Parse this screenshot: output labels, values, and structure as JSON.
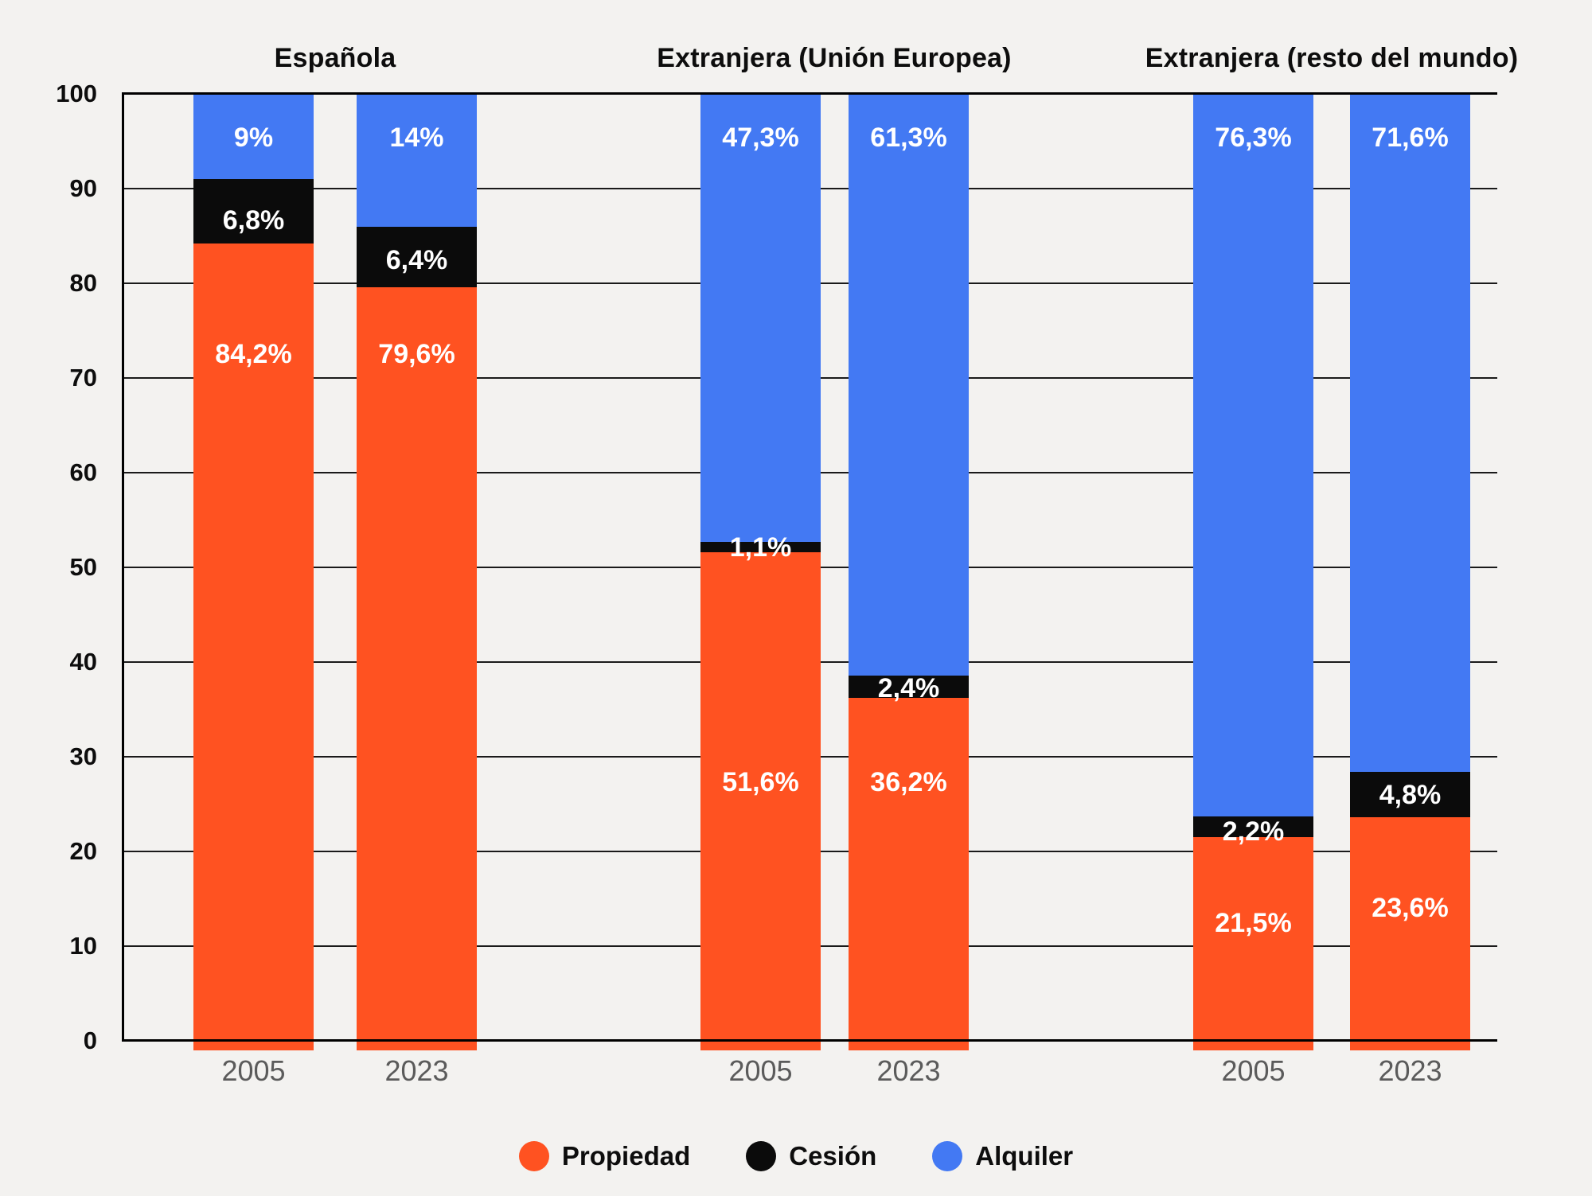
{
  "chart_data": {
    "type": "bar",
    "stacked": true,
    "unit": "%",
    "grid": true,
    "y_axis": {
      "min": 0,
      "max": 100,
      "step": 10,
      "tick_labels": [
        "0",
        "10",
        "20",
        "30",
        "40",
        "50",
        "60",
        "70",
        "80",
        "90",
        "100"
      ]
    },
    "series": [
      {
        "name": "Propiedad",
        "color": "#FF5221"
      },
      {
        "name": "Cesión",
        "color": "#0B0B0B"
      },
      {
        "name": "Alquiler",
        "color": "#4379F3"
      }
    ],
    "legend": {
      "position": "bottom",
      "items": [
        "Propiedad",
        "Cesión",
        "Alquiler"
      ]
    },
    "groups": [
      {
        "label": "Española",
        "bars": [
          {
            "category": "2005",
            "segments": [
              {
                "series": "Propiedad",
                "value": 84.2,
                "label": "84,2%",
                "label_at": 72.5
              },
              {
                "series": "Cesión",
                "value": 6.8,
                "label": "6,8%",
                "label_at": 86.6
              },
              {
                "series": "Alquiler",
                "value": 9.0,
                "label": "9%",
                "label_at": 95.4
              }
            ]
          },
          {
            "category": "2023",
            "segments": [
              {
                "series": "Propiedad",
                "value": 79.6,
                "label": "79,6%",
                "label_at": 72.5
              },
              {
                "series": "Cesión",
                "value": 6.4,
                "label": "6,4%",
                "label_at": 82.4
              },
              {
                "series": "Alquiler",
                "value": 14.0,
                "label": "14%",
                "label_at": 95.4
              }
            ]
          }
        ]
      },
      {
        "label": "Extranjera (Unión Europea)",
        "bars": [
          {
            "category": "2005",
            "segments": [
              {
                "series": "Propiedad",
                "value": 51.6,
                "label": "51,6%",
                "label_at": 27.3
              },
              {
                "series": "Cesión",
                "value": 1.1,
                "label": "1,1%",
                "label_at": 52.1
              },
              {
                "series": "Alquiler",
                "value": 47.3,
                "label": "47,3%",
                "label_at": 95.4
              }
            ]
          },
          {
            "category": "2023",
            "segments": [
              {
                "series": "Propiedad",
                "value": 36.2,
                "label": "36,2%",
                "label_at": 27.3
              },
              {
                "series": "Cesión",
                "value": 2.4,
                "label": "2,4%",
                "label_at": 37.2
              },
              {
                "series": "Alquiler",
                "value": 61.3,
                "label": "61,3%",
                "label_at": 95.4
              }
            ]
          }
        ]
      },
      {
        "label": "Extranjera (resto del mundo)",
        "bars": [
          {
            "category": "2005",
            "segments": [
              {
                "series": "Propiedad",
                "value": 21.5,
                "label": "21,5%",
                "label_at": 12.4
              },
              {
                "series": "Cesión",
                "value": 2.2,
                "label": "2,2%",
                "label_at": 22.1
              },
              {
                "series": "Alquiler",
                "value": 76.3,
                "label": "76,3%",
                "label_at": 95.4
              }
            ]
          },
          {
            "category": "2023",
            "segments": [
              {
                "series": "Propiedad",
                "value": 23.6,
                "label": "23,6%",
                "label_at": 14.0
              },
              {
                "series": "Cesión",
                "value": 4.8,
                "label": "4,8%",
                "label_at": 26.0
              },
              {
                "series": "Alquiler",
                "value": 71.6,
                "label": "71,6%",
                "label_at": 95.4
              }
            ]
          }
        ]
      }
    ]
  },
  "colors": {
    "background": "#F3F2F0",
    "gridline": "#1A1A1A",
    "axis_line": "#000000",
    "tick_label": "#0D0D0D",
    "year_label": "#5B5B5B",
    "bar_label": "#FFFFFF"
  }
}
